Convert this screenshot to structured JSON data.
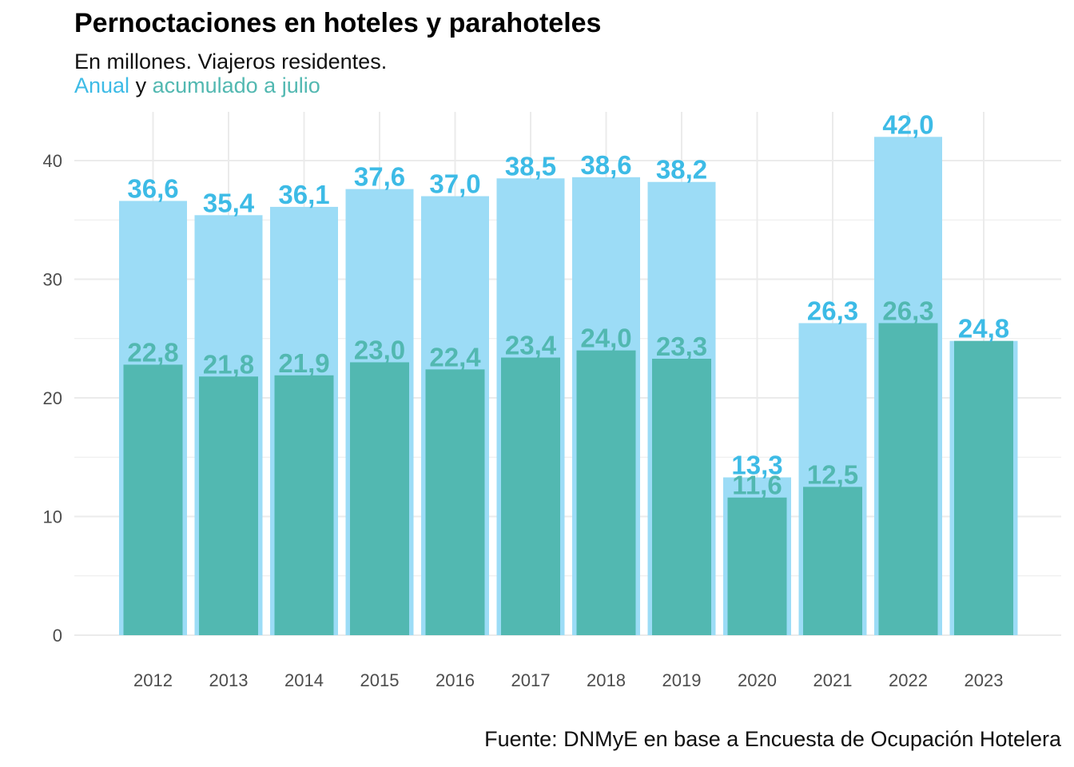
{
  "title": "Pernoctaciones en hoteles y parahoteles",
  "subtitle": "En millones. Viajeros residentes.",
  "legend": {
    "anual_label": "Anual",
    "connector": "y",
    "acumulado_label": "acumulado a julio"
  },
  "caption": "Fuente: DNMyE en base a Encuesta de Ocupación Hotelera",
  "colors": {
    "anual": "#9cdcf6",
    "anual_label": "#3dbbe6",
    "acumulado": "#52b8b1",
    "grid": "#ebebeb",
    "tick": "#4d4d4d"
  },
  "chart_data": {
    "type": "bar",
    "title": "Pernoctaciones en hoteles y parahoteles",
    "subtitle": "En millones. Viajeros residentes.",
    "xlabel": "",
    "ylabel": "",
    "categories": [
      "2012",
      "2013",
      "2014",
      "2015",
      "2016",
      "2017",
      "2018",
      "2019",
      "2020",
      "2021",
      "2022",
      "2023"
    ],
    "series": [
      {
        "name": "Anual",
        "values": [
          36.6,
          35.4,
          36.1,
          37.6,
          37.0,
          38.5,
          38.6,
          38.2,
          13.3,
          26.3,
          42.0,
          24.8
        ],
        "labels": [
          "36,6",
          "35,4",
          "36,1",
          "37,6",
          "37,0",
          "38,5",
          "38,6",
          "38,2",
          "13,3",
          "26,3",
          "42,0",
          "24,8"
        ]
      },
      {
        "name": "acumulado a julio",
        "values": [
          22.8,
          21.8,
          21.9,
          23.0,
          22.4,
          23.4,
          24.0,
          23.3,
          11.6,
          12.5,
          26.3,
          24.8
        ],
        "labels": [
          "22,8",
          "21,8",
          "21,9",
          "23,0",
          "22,4",
          "23,4",
          "24,0",
          "23,3",
          "11,6",
          "12,5",
          "26,3",
          ""
        ]
      }
    ],
    "yticks": [
      0,
      10,
      20,
      30,
      40
    ],
    "ylim": [
      0,
      44
    ],
    "grid": true,
    "legend": "in-subtitle"
  }
}
